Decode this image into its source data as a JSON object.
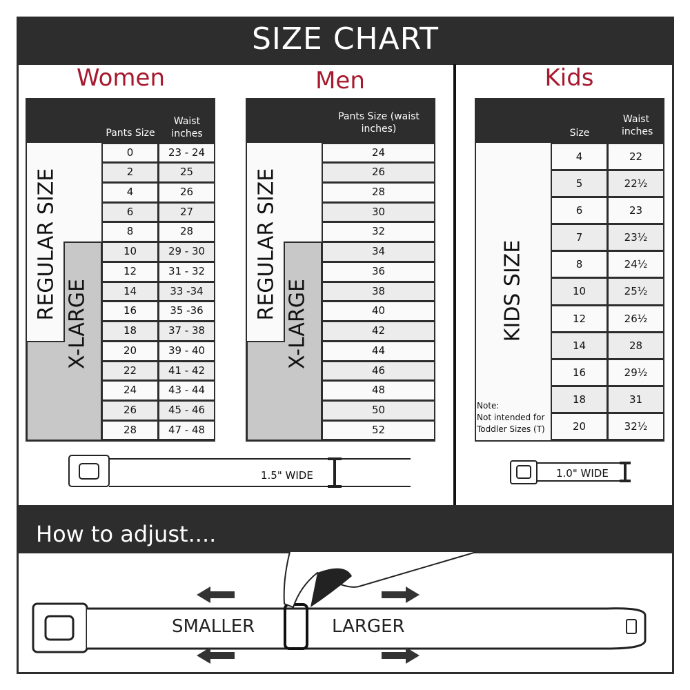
{
  "title": "SIZE CHART",
  "women": {
    "title": "Women",
    "col1": "Pants Size",
    "col2": "Waist inches",
    "regular_label": "REGULAR SIZE",
    "xlarge_label": "X-LARGE",
    "rows": [
      [
        "0",
        "23 - 24"
      ],
      [
        "2",
        "25"
      ],
      [
        "4",
        "26"
      ],
      [
        "6",
        "27"
      ],
      [
        "8",
        "28"
      ],
      [
        "10",
        "29 - 30"
      ],
      [
        "12",
        "31 - 32"
      ],
      [
        "14",
        "33 -34"
      ],
      [
        "16",
        "35 -36"
      ],
      [
        "18",
        "37 - 38"
      ],
      [
        "20",
        "39 - 40"
      ],
      [
        "22",
        "41 - 42"
      ],
      [
        "24",
        "43 - 44"
      ],
      [
        "26",
        "45 - 46"
      ],
      [
        "28",
        "47 - 48"
      ]
    ],
    "belt_width": "1.5\" WIDE"
  },
  "men": {
    "title": "Men",
    "col1": "Pants Size (waist inches)",
    "regular_label": "REGULAR SIZE",
    "xlarge_label": "X-LARGE",
    "rows": [
      "24",
      "26",
      "28",
      "30",
      "32",
      "34",
      "36",
      "38",
      "40",
      "42",
      "44",
      "46",
      "48",
      "50",
      "52"
    ]
  },
  "kids": {
    "title": "Kids",
    "col1": "Size",
    "col2": "Waist inches",
    "label": "KIDS SIZE",
    "note": "Note:",
    "note2": "Not intended for Toddler Sizes (T)",
    "rows": [
      [
        "4",
        "22"
      ],
      [
        "5",
        "22½"
      ],
      [
        "6",
        "23"
      ],
      [
        "7",
        "23½"
      ],
      [
        "8",
        "24½"
      ],
      [
        "10",
        "25½"
      ],
      [
        "12",
        "26½"
      ],
      [
        "14",
        "28"
      ],
      [
        "16",
        "29½"
      ],
      [
        "18",
        "31"
      ],
      [
        "20",
        "32½"
      ]
    ],
    "belt_width": "1.0\" WIDE"
  },
  "adjust": {
    "title": "How to adjust....",
    "smaller": "SMALLER",
    "larger": "LARGER"
  },
  "colors": {
    "accent": "#a6192e",
    "dark": "#2d2d2d",
    "xlarge_fill": "#c8c8c8"
  }
}
